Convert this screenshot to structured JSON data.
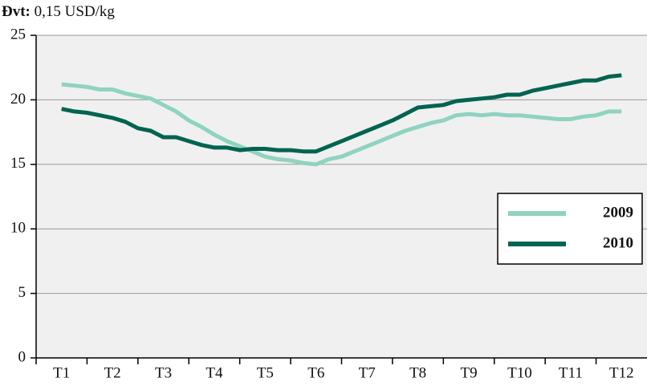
{
  "chart_data": {
    "type": "line",
    "title_prefix": "Đvt:",
    "title": "0,15 USD/kg",
    "x": [
      1,
      1.25,
      1.5,
      1.75,
      2,
      2.25,
      2.5,
      2.75,
      3,
      3.25,
      3.5,
      3.75,
      4,
      4.25,
      4.5,
      4.75,
      5,
      5.25,
      5.5,
      5.75,
      6,
      6.25,
      6.5,
      6.75,
      7,
      7.25,
      7.5,
      7.75,
      8,
      8.25,
      8.5,
      8.75,
      9,
      9.25,
      9.5,
      9.75,
      10,
      10.25,
      10.5,
      10.75,
      11,
      11.25,
      11.5,
      11.75,
      12
    ],
    "series": [
      {
        "name": "2009",
        "color": "#8fd3c0",
        "values": [
          21.2,
          21.1,
          21.0,
          20.8,
          20.8,
          20.5,
          20.3,
          20.1,
          19.6,
          19.1,
          18.4,
          17.9,
          17.3,
          16.8,
          16.4,
          16.0,
          15.6,
          15.4,
          15.3,
          15.1,
          15.0,
          15.4,
          15.6,
          16.0,
          16.4,
          16.8,
          17.2,
          17.6,
          17.9,
          18.2,
          18.4,
          18.8,
          18.9,
          18.8,
          18.9,
          18.8,
          18.8,
          18.7,
          18.6,
          18.5,
          18.5,
          18.7,
          18.8,
          19.1,
          19.1
        ]
      },
      {
        "name": "2010",
        "color": "#006450",
        "values": [
          19.3,
          19.1,
          19.0,
          18.8,
          18.6,
          18.3,
          17.8,
          17.6,
          17.1,
          17.1,
          16.8,
          16.5,
          16.3,
          16.3,
          16.1,
          16.2,
          16.2,
          16.1,
          16.1,
          16.0,
          16.0,
          16.4,
          16.8,
          17.2,
          17.6,
          18.0,
          18.4,
          18.9,
          19.4,
          19.5,
          19.6,
          19.9,
          20.0,
          20.1,
          20.2,
          20.4,
          20.4,
          20.7,
          20.9,
          21.1,
          21.3,
          21.5,
          21.5,
          21.8,
          21.9
        ]
      }
    ],
    "xlim": [
      0.5,
      12.5
    ],
    "xticks": [
      {
        "value": 1,
        "label": "T1"
      },
      {
        "value": 2,
        "label": "T2"
      },
      {
        "value": 3,
        "label": "T3"
      },
      {
        "value": 4,
        "label": "T4"
      },
      {
        "value": 5,
        "label": "T5"
      },
      {
        "value": 6,
        "label": "T6"
      },
      {
        "value": 7,
        "label": "T7"
      },
      {
        "value": 8,
        "label": "T8"
      },
      {
        "value": 9,
        "label": "T9"
      },
      {
        "value": 10,
        "label": "T10"
      },
      {
        "value": 11,
        "label": "T11"
      },
      {
        "value": 12,
        "label": "T12"
      }
    ],
    "ylim": [
      0,
      25
    ],
    "yticks": [
      0,
      5,
      10,
      15,
      20,
      25
    ],
    "grid": true
  }
}
